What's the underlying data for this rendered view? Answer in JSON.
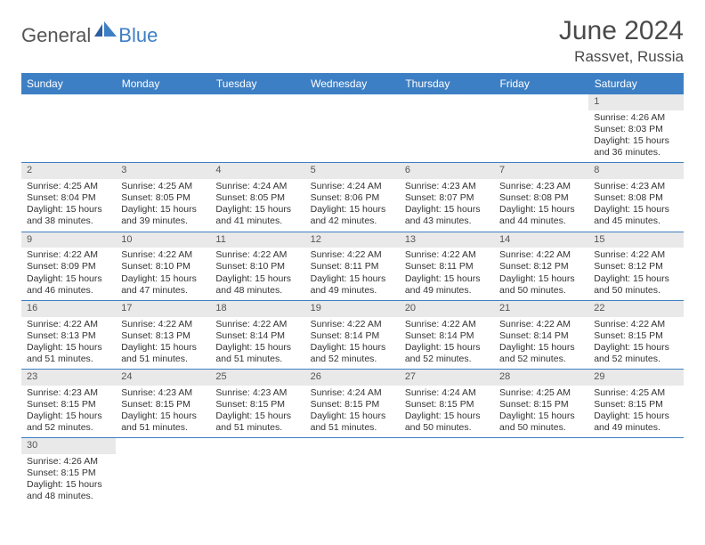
{
  "brand": {
    "part1": "General",
    "part2": "Blue"
  },
  "title": "June 2024",
  "location": "Rassvet, Russia",
  "colors": {
    "header_bg": "#3d7fc4",
    "header_text": "#ffffff",
    "dayrow_bg": "#e9e9e9",
    "cell_border": "#3d7fc4",
    "body_text": "#333333"
  },
  "weekdays": [
    "Sunday",
    "Monday",
    "Tuesday",
    "Wednesday",
    "Thursday",
    "Friday",
    "Saturday"
  ],
  "weeks": [
    [
      null,
      null,
      null,
      null,
      null,
      null,
      {
        "n": "1",
        "sr": "Sunrise: 4:26 AM",
        "ss": "Sunset: 8:03 PM",
        "dl": "Daylight: 15 hours and 36 minutes."
      }
    ],
    [
      {
        "n": "2",
        "sr": "Sunrise: 4:25 AM",
        "ss": "Sunset: 8:04 PM",
        "dl": "Daylight: 15 hours and 38 minutes."
      },
      {
        "n": "3",
        "sr": "Sunrise: 4:25 AM",
        "ss": "Sunset: 8:05 PM",
        "dl": "Daylight: 15 hours and 39 minutes."
      },
      {
        "n": "4",
        "sr": "Sunrise: 4:24 AM",
        "ss": "Sunset: 8:05 PM",
        "dl": "Daylight: 15 hours and 41 minutes."
      },
      {
        "n": "5",
        "sr": "Sunrise: 4:24 AM",
        "ss": "Sunset: 8:06 PM",
        "dl": "Daylight: 15 hours and 42 minutes."
      },
      {
        "n": "6",
        "sr": "Sunrise: 4:23 AM",
        "ss": "Sunset: 8:07 PM",
        "dl": "Daylight: 15 hours and 43 minutes."
      },
      {
        "n": "7",
        "sr": "Sunrise: 4:23 AM",
        "ss": "Sunset: 8:08 PM",
        "dl": "Daylight: 15 hours and 44 minutes."
      },
      {
        "n": "8",
        "sr": "Sunrise: 4:23 AM",
        "ss": "Sunset: 8:08 PM",
        "dl": "Daylight: 15 hours and 45 minutes."
      }
    ],
    [
      {
        "n": "9",
        "sr": "Sunrise: 4:22 AM",
        "ss": "Sunset: 8:09 PM",
        "dl": "Daylight: 15 hours and 46 minutes."
      },
      {
        "n": "10",
        "sr": "Sunrise: 4:22 AM",
        "ss": "Sunset: 8:10 PM",
        "dl": "Daylight: 15 hours and 47 minutes."
      },
      {
        "n": "11",
        "sr": "Sunrise: 4:22 AM",
        "ss": "Sunset: 8:10 PM",
        "dl": "Daylight: 15 hours and 48 minutes."
      },
      {
        "n": "12",
        "sr": "Sunrise: 4:22 AM",
        "ss": "Sunset: 8:11 PM",
        "dl": "Daylight: 15 hours and 49 minutes."
      },
      {
        "n": "13",
        "sr": "Sunrise: 4:22 AM",
        "ss": "Sunset: 8:11 PM",
        "dl": "Daylight: 15 hours and 49 minutes."
      },
      {
        "n": "14",
        "sr": "Sunrise: 4:22 AM",
        "ss": "Sunset: 8:12 PM",
        "dl": "Daylight: 15 hours and 50 minutes."
      },
      {
        "n": "15",
        "sr": "Sunrise: 4:22 AM",
        "ss": "Sunset: 8:12 PM",
        "dl": "Daylight: 15 hours and 50 minutes."
      }
    ],
    [
      {
        "n": "16",
        "sr": "Sunrise: 4:22 AM",
        "ss": "Sunset: 8:13 PM",
        "dl": "Daylight: 15 hours and 51 minutes."
      },
      {
        "n": "17",
        "sr": "Sunrise: 4:22 AM",
        "ss": "Sunset: 8:13 PM",
        "dl": "Daylight: 15 hours and 51 minutes."
      },
      {
        "n": "18",
        "sr": "Sunrise: 4:22 AM",
        "ss": "Sunset: 8:14 PM",
        "dl": "Daylight: 15 hours and 51 minutes."
      },
      {
        "n": "19",
        "sr": "Sunrise: 4:22 AM",
        "ss": "Sunset: 8:14 PM",
        "dl": "Daylight: 15 hours and 52 minutes."
      },
      {
        "n": "20",
        "sr": "Sunrise: 4:22 AM",
        "ss": "Sunset: 8:14 PM",
        "dl": "Daylight: 15 hours and 52 minutes."
      },
      {
        "n": "21",
        "sr": "Sunrise: 4:22 AM",
        "ss": "Sunset: 8:14 PM",
        "dl": "Daylight: 15 hours and 52 minutes."
      },
      {
        "n": "22",
        "sr": "Sunrise: 4:22 AM",
        "ss": "Sunset: 8:15 PM",
        "dl": "Daylight: 15 hours and 52 minutes."
      }
    ],
    [
      {
        "n": "23",
        "sr": "Sunrise: 4:23 AM",
        "ss": "Sunset: 8:15 PM",
        "dl": "Daylight: 15 hours and 52 minutes."
      },
      {
        "n": "24",
        "sr": "Sunrise: 4:23 AM",
        "ss": "Sunset: 8:15 PM",
        "dl": "Daylight: 15 hours and 51 minutes."
      },
      {
        "n": "25",
        "sr": "Sunrise: 4:23 AM",
        "ss": "Sunset: 8:15 PM",
        "dl": "Daylight: 15 hours and 51 minutes."
      },
      {
        "n": "26",
        "sr": "Sunrise: 4:24 AM",
        "ss": "Sunset: 8:15 PM",
        "dl": "Daylight: 15 hours and 51 minutes."
      },
      {
        "n": "27",
        "sr": "Sunrise: 4:24 AM",
        "ss": "Sunset: 8:15 PM",
        "dl": "Daylight: 15 hours and 50 minutes."
      },
      {
        "n": "28",
        "sr": "Sunrise: 4:25 AM",
        "ss": "Sunset: 8:15 PM",
        "dl": "Daylight: 15 hours and 50 minutes."
      },
      {
        "n": "29",
        "sr": "Sunrise: 4:25 AM",
        "ss": "Sunset: 8:15 PM",
        "dl": "Daylight: 15 hours and 49 minutes."
      }
    ],
    [
      {
        "n": "30",
        "sr": "Sunrise: 4:26 AM",
        "ss": "Sunset: 8:15 PM",
        "dl": "Daylight: 15 hours and 48 minutes."
      },
      null,
      null,
      null,
      null,
      null,
      null
    ]
  ]
}
